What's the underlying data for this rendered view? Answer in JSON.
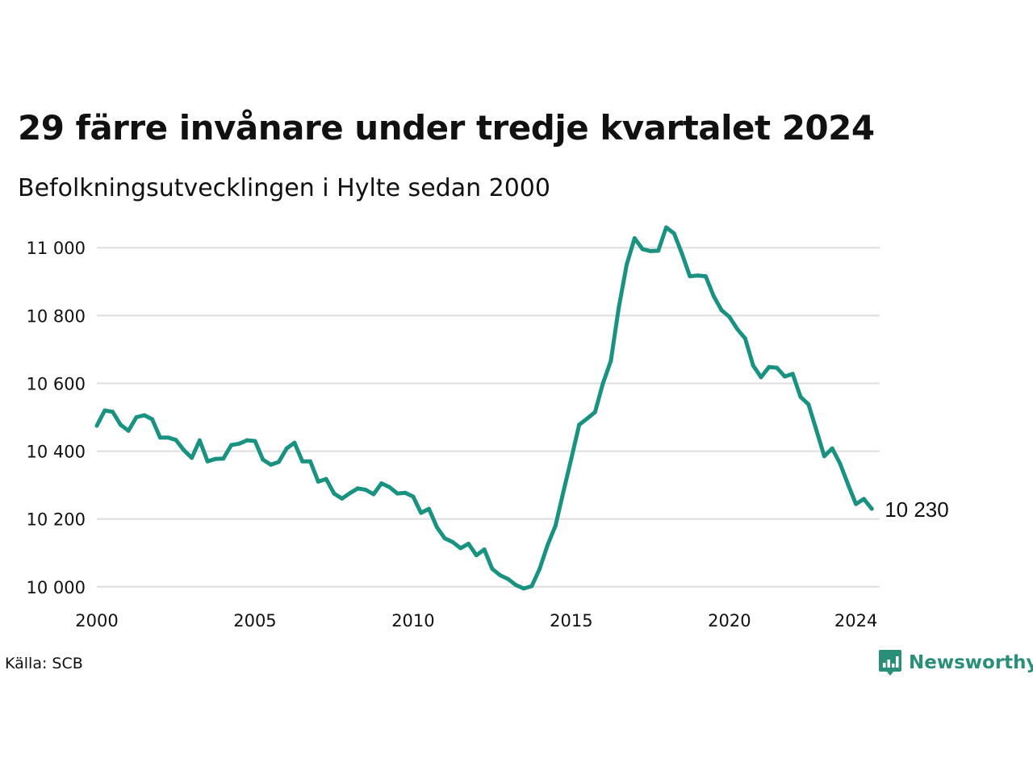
{
  "title": "29 färre invånare under tredje kvartalet 2024",
  "subtitle": "Befolkningsutvecklingen i Hylte sedan 2000",
  "source": "Källa: SCB",
  "brand": {
    "name": "Newsworthy",
    "icon": "newsworthy-logo-icon"
  },
  "colors": {
    "line": "#1a9282",
    "grid": "#dddddd",
    "brand": "#2a8f78"
  },
  "chart_data": {
    "type": "line",
    "title": "29 färre invånare under tredje kvartalet 2024",
    "subtitle": "Befolkningsutvecklingen i Hylte sedan 2000",
    "xlim": [
      2000,
      2024.75
    ],
    "ylim": [
      9990,
      11060
    ],
    "grid": true,
    "yticks": [
      10000,
      10200,
      10400,
      10600,
      10800,
      11000
    ],
    "ytick_labels": [
      "10 000",
      "10 200",
      "10 400",
      "10 600",
      "10 800",
      "11 000"
    ],
    "xticks": [
      2000,
      2005,
      2010,
      2015,
      2020,
      2024
    ],
    "xtick_labels": [
      "2000",
      "2005",
      "2010",
      "2015",
      "2020",
      "2024"
    ],
    "end_label": "10 230",
    "series": [
      {
        "x": [
          "2000 Q1",
          "2000 Q2",
          "2000 Q3",
          "2000 Q4",
          "2001 Q1",
          "2001 Q2",
          "2001 Q3",
          "2001 Q4",
          "2002 Q1",
          "2002 Q2",
          "2002 Q3",
          "2002 Q4",
          "2003 Q1",
          "2003 Q2",
          "2003 Q3",
          "2003 Q4",
          "2004 Q1",
          "2004 Q2",
          "2004 Q3",
          "2004 Q4",
          "2005 Q1",
          "2005 Q2",
          "2005 Q3",
          "2005 Q4",
          "2006 Q1",
          "2006 Q2",
          "2006 Q3",
          "2006 Q4",
          "2007 Q1",
          "2007 Q2",
          "2007 Q3",
          "2007 Q4",
          "2008 Q1",
          "2008 Q2",
          "2008 Q3",
          "2008 Q4",
          "2009 Q1",
          "2009 Q2",
          "2009 Q3",
          "2009 Q4",
          "2010 Q1",
          "2010 Q2",
          "2010 Q3",
          "2010 Q4",
          "2011 Q1",
          "2011 Q2",
          "2011 Q3",
          "2011 Q4",
          "2012 Q1",
          "2012 Q2",
          "2012 Q3",
          "2012 Q4",
          "2013 Q1",
          "2013 Q2",
          "2013 Q3",
          "2013 Q4",
          "2014 Q1",
          "2014 Q2",
          "2014 Q3",
          "2014 Q4",
          "2015 Q1",
          "2015 Q2",
          "2015 Q3",
          "2015 Q4",
          "2016 Q1",
          "2016 Q2",
          "2016 Q3",
          "2016 Q4",
          "2017 Q1",
          "2017 Q2",
          "2017 Q3",
          "2017 Q4",
          "2018 Q1",
          "2018 Q2",
          "2018 Q3",
          "2018 Q4",
          "2019 Q1",
          "2019 Q2",
          "2019 Q3",
          "2019 Q4",
          "2020 Q1",
          "2020 Q2",
          "2020 Q3",
          "2020 Q4",
          "2021 Q1",
          "2021 Q2",
          "2021 Q3",
          "2021 Q4",
          "2022 Q1",
          "2022 Q2",
          "2022 Q3",
          "2022 Q4",
          "2023 Q1",
          "2023 Q2",
          "2023 Q3",
          "2023 Q4",
          "2024 Q1",
          "2024 Q2",
          "2024 Q3"
        ],
        "values": [
          10475,
          10520,
          10516,
          10478,
          10460,
          10500,
          10506,
          10494,
          10440,
          10440,
          10433,
          10403,
          10380,
          10432,
          10370,
          10377,
          10378,
          10418,
          10422,
          10432,
          10430,
          10375,
          10360,
          10368,
          10408,
          10425,
          10370,
          10370,
          10310,
          10318,
          10275,
          10260,
          10276,
          10290,
          10286,
          10273,
          10305,
          10294,
          10275,
          10277,
          10266,
          10218,
          10230,
          10176,
          10143,
          10132,
          10114,
          10127,
          10093,
          10110,
          10053,
          10034,
          10023,
          10005,
          9995,
          10002,
          10053,
          10123,
          10180,
          10280,
          10378,
          10478,
          10496,
          10515,
          10600,
          10666,
          10823,
          10950,
          11028,
          10996,
          10990,
          10991,
          11060,
          11042,
          10982,
          10916,
          10918,
          10916,
          10858,
          10816,
          10796,
          10760,
          10732,
          10653,
          10618,
          10648,
          10646,
          10620,
          10628,
          10560,
          10538,
          10462,
          10385,
          10408,
          10363,
          10302,
          10244,
          10259,
          10230
        ]
      }
    ]
  }
}
